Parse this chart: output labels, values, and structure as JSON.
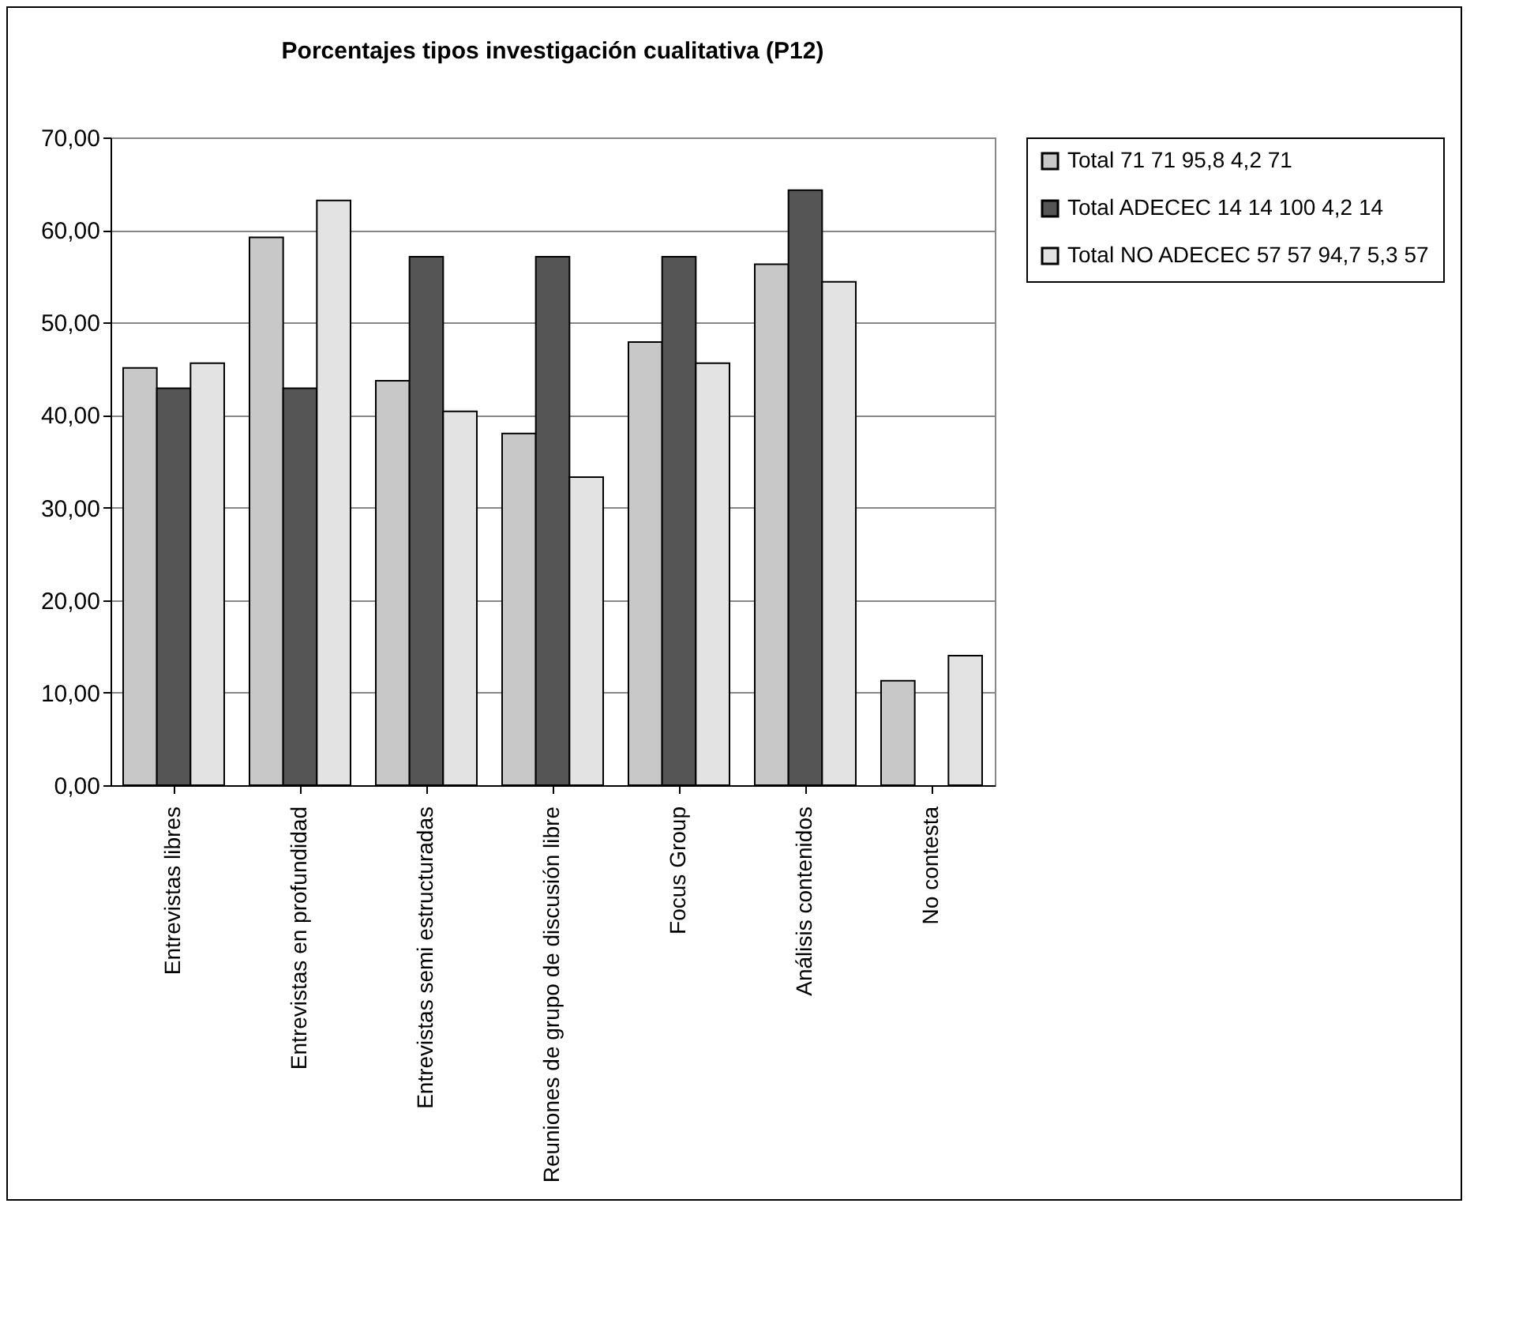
{
  "chart_data": {
    "type": "bar",
    "title": "Porcentajes tipos investigación cualitativa (P12)",
    "categories": [
      "Entrevistas libres",
      "Entrevistas en profundidad",
      "Entrevistas semi estructuradas",
      "Reuniones de grupo de discusión libre",
      "Focus Group",
      "Análisis contenidos",
      "No contesta"
    ],
    "series": [
      {
        "name": "Total 71 71 95,8 4,2 71",
        "color": "#c8c8c8",
        "values": [
          45.1,
          59.2,
          43.7,
          38.0,
          47.9,
          56.3,
          11.3
        ]
      },
      {
        "name": "Total ADECEC 14 14 100 4,2 14",
        "color": "#555555",
        "values": [
          42.9,
          42.9,
          57.1,
          57.1,
          57.1,
          64.3,
          null
        ]
      },
      {
        "name": "Total NO ADECEC 57 57 94,7 5,3 57",
        "color": "#e3e3e3",
        "values": [
          45.6,
          63.2,
          40.4,
          33.3,
          45.6,
          54.4,
          14.0
        ]
      }
    ],
    "ylim": [
      0,
      70
    ],
    "yticks": [
      {
        "value": 0,
        "label": "0,00"
      },
      {
        "value": 10,
        "label": "10,00"
      },
      {
        "value": 20,
        "label": "20,00"
      },
      {
        "value": 30,
        "label": "30,00"
      },
      {
        "value": 40,
        "label": "40,00"
      },
      {
        "value": 50,
        "label": "50,00"
      },
      {
        "value": 60,
        "label": "60,00"
      },
      {
        "value": 70,
        "label": "70,00"
      }
    ],
    "grid": "y",
    "legend": "right"
  }
}
